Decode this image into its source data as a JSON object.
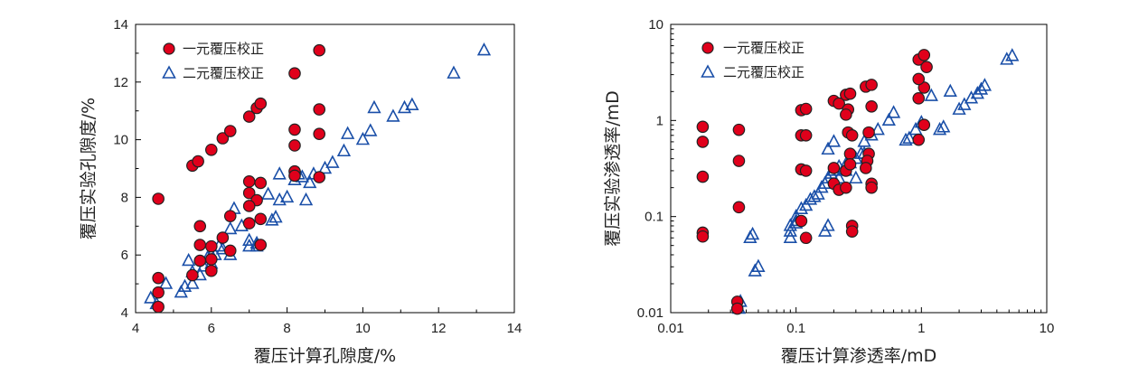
{
  "chart_data": [
    {
      "type": "scatter",
      "xlabel": "覆压计算孔隙度/%",
      "ylabel": "覆压实验孔隙度/%",
      "xlim": [
        4,
        14
      ],
      "ylim": [
        4,
        14
      ],
      "xticks": [
        4,
        6,
        8,
        10,
        12,
        14
      ],
      "yticks": [
        4,
        6,
        8,
        10,
        12,
        14
      ],
      "xscale": "linear",
      "yscale": "linear",
      "grid": false,
      "legend_position": "top-left",
      "series": [
        {
          "name": "一元覆压校正",
          "marker": "circle",
          "color": "#e0001b",
          "x": [
            4.6,
            4.6,
            4.6,
            4.6,
            5.5,
            5.65,
            6.0,
            6.3,
            6.5,
            7.0,
            7.2,
            7.3,
            8.2,
            8.85,
            8.2,
            8.2,
            8.85,
            8.85,
            8.2,
            8.2,
            8.85,
            7.0,
            7.0,
            7.3,
            7.2,
            7.0,
            6.5,
            7.0,
            7.3,
            7.3,
            6.3,
            5.7,
            5.7,
            6.0,
            5.7,
            6.0,
            6.5,
            5.5,
            6.0
          ],
          "y": [
            7.95,
            5.2,
            4.7,
            4.2,
            9.1,
            9.25,
            9.65,
            10.05,
            10.3,
            10.8,
            11.1,
            11.25,
            12.3,
            13.1,
            10.35,
            9.8,
            11.05,
            10.2,
            8.9,
            8.75,
            8.7,
            8.55,
            8.15,
            8.5,
            7.9,
            7.7,
            7.35,
            7.1,
            7.25,
            6.35,
            6.6,
            7.0,
            6.35,
            6.3,
            5.8,
            5.85,
            6.15,
            5.3,
            5.45
          ]
        },
        {
          "name": "二元覆压校正",
          "marker": "triangle",
          "color": "#1a4fa8",
          "x": [
            4.4,
            4.55,
            4.8,
            5.2,
            5.4,
            5.5,
            5.7,
            5.8,
            6.0,
            6.2,
            6.5,
            6.6,
            6.8,
            7.0,
            7.2,
            7.5,
            7.7,
            7.8,
            8.0,
            8.2,
            8.5,
            8.7,
            9.0,
            9.2,
            9.5,
            9.6,
            10.0,
            10.2,
            10.3,
            10.8,
            11.1,
            11.3,
            12.4,
            13.2,
            6.3,
            6.1,
            5.9,
            7.6,
            7.8,
            8.4,
            8.6,
            8.3,
            7.0,
            7.2,
            6.5,
            6.0,
            5.5,
            5.3
          ],
          "y": [
            4.5,
            4.3,
            5.0,
            4.7,
            5.8,
            5.0,
            5.3,
            5.6,
            6.0,
            6.3,
            6.9,
            7.6,
            7.0,
            6.5,
            6.4,
            8.1,
            7.3,
            7.9,
            8.0,
            8.6,
            7.9,
            8.8,
            9.0,
            9.2,
            9.6,
            10.2,
            10.0,
            10.3,
            11.1,
            10.8,
            11.1,
            11.2,
            12.3,
            13.1,
            6.2,
            6.0,
            5.9,
            7.2,
            8.8,
            8.7,
            8.5,
            8.8,
            6.3,
            6.3,
            6.0,
            5.7,
            5.4,
            4.9
          ]
        }
      ]
    },
    {
      "type": "scatter",
      "xlabel": "覆压计算渗透率/mD",
      "ylabel": "覆压实验渗透率/mD",
      "xlim": [
        0.01,
        10
      ],
      "ylim": [
        0.01,
        10
      ],
      "xticks": [
        "0.01",
        "0.1",
        "1",
        "10"
      ],
      "yticks": [
        "0.01",
        "0.1",
        "1",
        "10"
      ],
      "xscale": "log",
      "yscale": "log",
      "grid": false,
      "legend_position": "top-left",
      "series": [
        {
          "name": "一元覆压校正",
          "marker": "circle",
          "color": "#e0001b",
          "x": [
            0.018,
            0.018,
            0.018,
            0.018,
            0.018,
            0.035,
            0.035,
            0.035,
            0.034,
            0.034,
            0.11,
            0.12,
            0.11,
            0.12,
            0.11,
            0.12,
            0.11,
            0.12,
            0.2,
            0.22,
            0.2,
            0.25,
            0.26,
            0.27,
            0.25,
            0.26,
            0.28,
            0.27,
            0.25,
            0.27,
            0.2,
            0.22,
            0.25,
            0.28,
            0.28,
            0.36,
            0.4,
            0.4,
            0.38,
            0.38,
            0.37,
            0.36,
            0.4,
            0.4,
            0.95,
            1.05,
            1.1,
            1.05,
            0.95,
            0.95,
            1.05,
            0.95
          ],
          "y": [
            0.86,
            0.6,
            0.26,
            0.068,
            0.062,
            0.8,
            0.38,
            0.125,
            0.013,
            0.011,
            1.28,
            1.32,
            0.7,
            0.7,
            0.31,
            0.3,
            0.09,
            0.06,
            1.6,
            1.5,
            0.32,
            1.85,
            1.3,
            1.9,
            1.15,
            0.75,
            0.7,
            0.45,
            0.3,
            0.35,
            0.22,
            0.19,
            0.2,
            0.08,
            0.07,
            2.25,
            2.35,
            1.4,
            0.75,
            0.45,
            0.38,
            0.32,
            0.22,
            0.2,
            4.3,
            4.8,
            3.6,
            2.2,
            1.7,
            0.63,
            0.9,
            2.7
          ]
        },
        {
          "name": "二元覆压校正",
          "marker": "triangle",
          "color": "#1a4fa8",
          "x": [
            0.035,
            0.036,
            0.043,
            0.045,
            0.047,
            0.05,
            0.09,
            0.09,
            0.1,
            0.1,
            0.11,
            0.12,
            0.13,
            0.14,
            0.15,
            0.16,
            0.17,
            0.18,
            0.19,
            0.2,
            0.22,
            0.25,
            0.27,
            0.3,
            0.33,
            0.35,
            0.4,
            0.45,
            0.55,
            0.6,
            0.75,
            0.8,
            0.9,
            1.0,
            1.2,
            1.4,
            1.5,
            1.7,
            2.0,
            2.2,
            2.5,
            2.8,
            3.0,
            3.2,
            4.8,
            5.3,
            0.18,
            0.2,
            0.22,
            0.25,
            0.3,
            0.35,
            0.09,
            0.1,
            0.17,
            0.18
          ],
          "y": [
            0.011,
            0.013,
            0.06,
            0.065,
            0.027,
            0.03,
            0.06,
            0.07,
            0.085,
            0.1,
            0.12,
            0.13,
            0.15,
            0.16,
            0.17,
            0.2,
            0.22,
            0.25,
            0.28,
            0.3,
            0.33,
            0.35,
            0.36,
            0.4,
            0.45,
            0.6,
            0.7,
            0.8,
            1.0,
            1.2,
            0.62,
            0.65,
            0.8,
            0.95,
            1.8,
            0.8,
            0.85,
            2.0,
            1.3,
            1.45,
            1.7,
            1.9,
            2.1,
            2.3,
            4.3,
            4.7,
            0.5,
            0.6,
            0.25,
            0.3,
            0.25,
            0.45,
            0.08,
            0.09,
            0.07,
            0.08
          ]
        }
      ]
    }
  ]
}
